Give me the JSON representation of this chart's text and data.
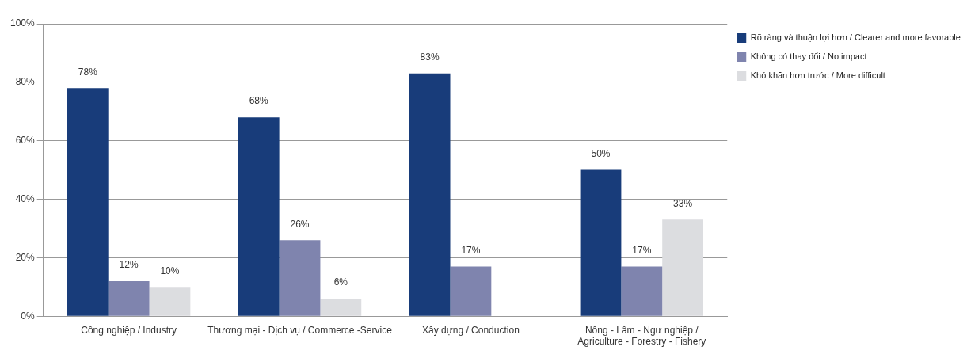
{
  "chart_data": {
    "type": "bar",
    "categories": [
      "Công nghiệp / Industry",
      "Thương mại - Dịch vụ / Commerce -Service",
      "Xây dựng / Conduction",
      "Nông - Lâm - Ngư nghiệp / Agriculture - Forestry - Fishery"
    ],
    "series": [
      {
        "name": "Rõ ràng và thuận lợi hơn / Clearer and more favorable",
        "color": "#183c7a",
        "values": [
          78,
          68,
          83,
          50
        ],
        "value_labels": [
          "78%",
          "68%",
          "83%",
          "50%"
        ]
      },
      {
        "name": "Không có thay đổi / No impact",
        "color": "#7f84ae",
        "values": [
          12,
          26,
          17,
          17
        ],
        "value_labels": [
          "12%",
          "26%",
          "17%",
          "17%"
        ]
      },
      {
        "name": "Khó khăn hơn trước / More difficult",
        "color": "#dcdde0",
        "values": [
          10,
          6,
          null,
          33
        ],
        "value_labels": [
          "10%",
          "6%",
          null,
          "33%"
        ]
      }
    ],
    "ylim": [
      0,
      100
    ],
    "yticks": [
      {
        "value": 0,
        "label": "0%"
      },
      {
        "value": 20,
        "label": "20%"
      },
      {
        "value": 40,
        "label": "40%"
      },
      {
        "value": 60,
        "label": "60%"
      },
      {
        "value": 80,
        "label": "80%"
      },
      {
        "value": 100,
        "label": "100%"
      }
    ],
    "grid": "y",
    "legend": "right"
  }
}
